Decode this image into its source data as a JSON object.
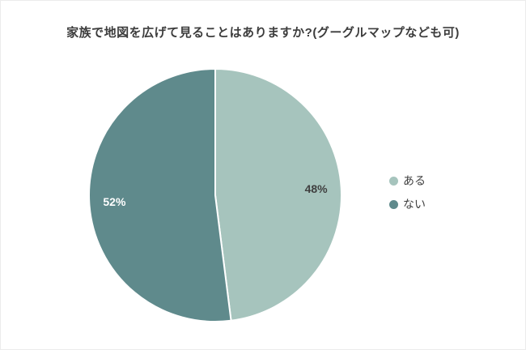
{
  "chart_data": {
    "type": "pie",
    "title": "家族で地図を広げて見ることはありますか?(グーグルマップなども可)",
    "labels": [
      "ある",
      "ない"
    ],
    "values": [
      48,
      52
    ],
    "value_labels": [
      "48%",
      "52%"
    ],
    "colors": [
      "#a6c4bd",
      "#5f8a8c"
    ],
    "label_text_colors": [
      "#404040",
      "#ffffff"
    ],
    "start_angle_deg": 0,
    "direction": "clockwise",
    "legend_position": "right",
    "background": "#ffffff"
  }
}
